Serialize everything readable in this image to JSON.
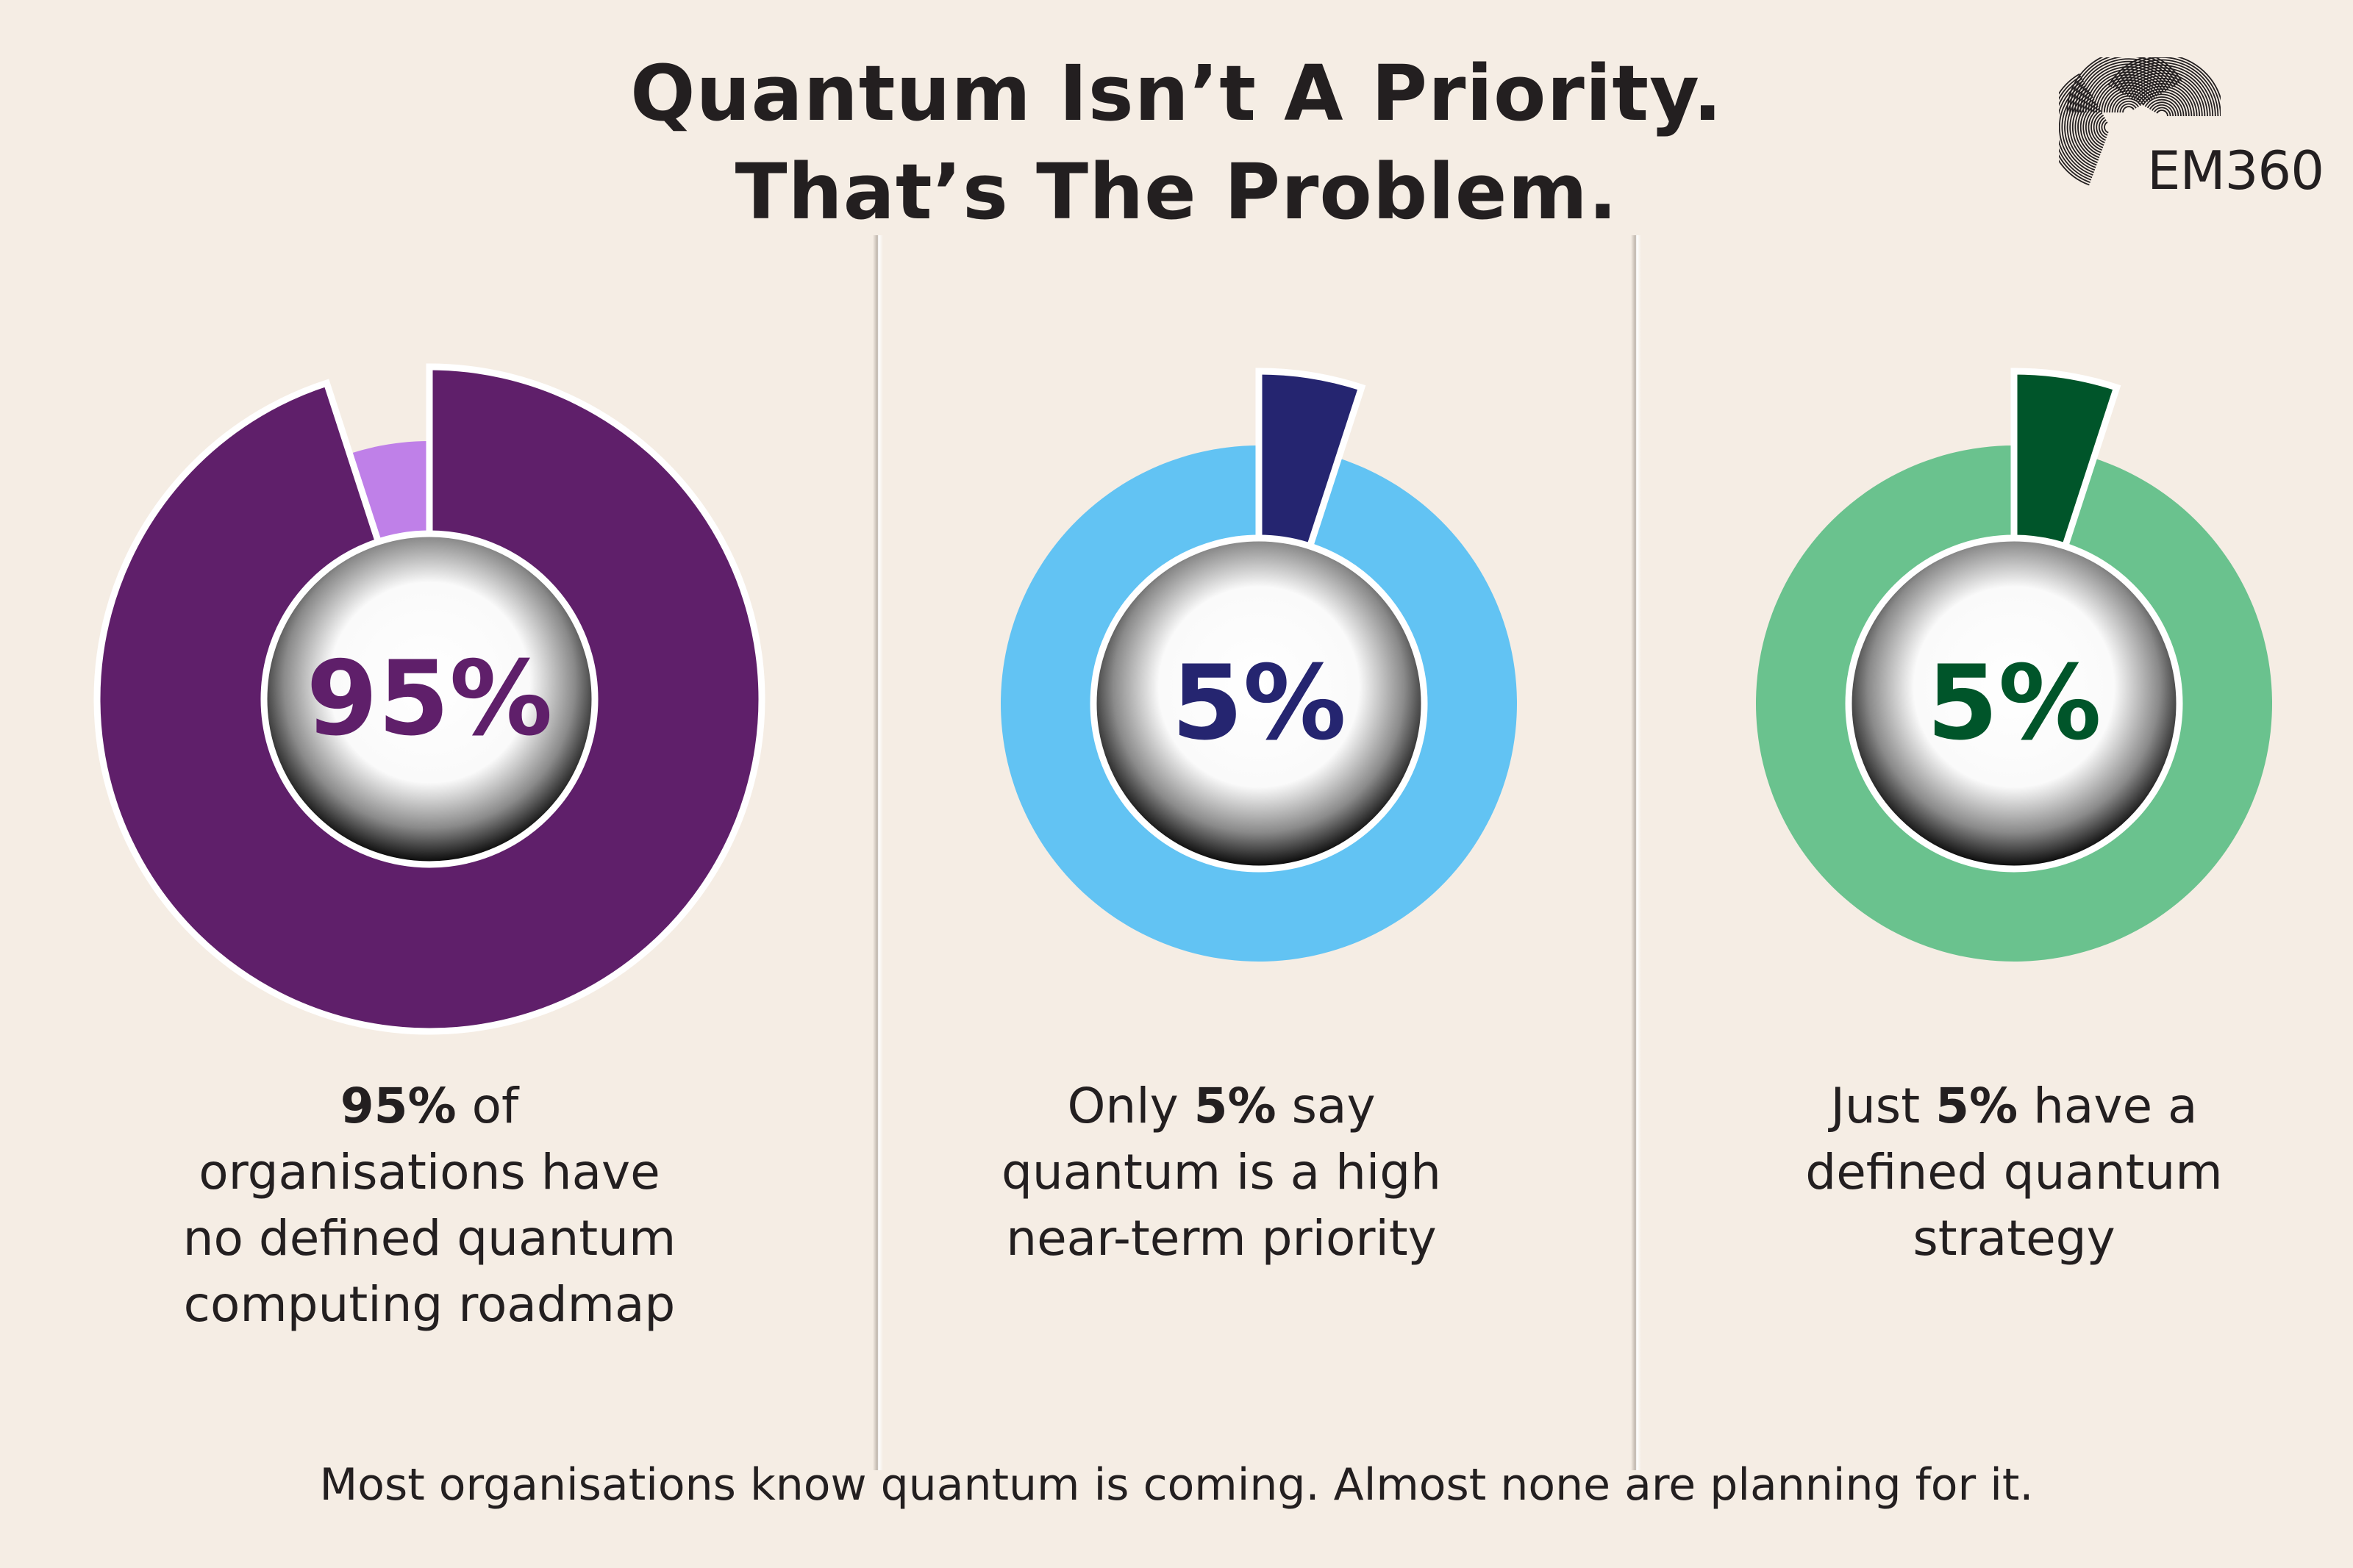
{
  "title": {
    "line1": "Quantum Isn’t A Priority.",
    "line2": "That’s The Problem."
  },
  "logo": {
    "text": "EM360"
  },
  "colors": {
    "background": "#f5ede4",
    "text": "#231f20"
  },
  "chart_data": [
    {
      "type": "pie",
      "style": "donut",
      "center_label": "95%",
      "segments": [
        {
          "value": 95,
          "color": "#5f1f6a",
          "highlighted": true
        },
        {
          "value": 5,
          "color": "#bf80e8",
          "highlighted": false
        }
      ],
      "label_color": "#5f1f6a",
      "caption": [
        {
          "bold": "95%",
          "post": " of"
        },
        {
          "pre": "organisations have"
        },
        {
          "pre": "no defined quantum"
        },
        {
          "pre": "computing roadmap"
        }
      ]
    },
    {
      "type": "pie",
      "style": "donut",
      "center_label": "5%",
      "segments": [
        {
          "value": 5,
          "color": "#252570",
          "highlighted": true
        },
        {
          "value": 95,
          "color": "#62c3f3",
          "highlighted": false
        }
      ],
      "label_color": "#252570",
      "caption": [
        {
          "pre": "Only ",
          "bold": "5%",
          "post": " say"
        },
        {
          "pre": "quantum is a high"
        },
        {
          "pre": "near-term priority"
        }
      ]
    },
    {
      "type": "pie",
      "style": "donut",
      "center_label": "5%",
      "segments": [
        {
          "value": 5,
          "color": "#00552a",
          "highlighted": true
        },
        {
          "value": 95,
          "color": "#6ac28e",
          "highlighted": false
        }
      ],
      "label_color": "#00552a",
      "caption": [
        {
          "pre": "Just ",
          "bold": "5%",
          "post": " have a"
        },
        {
          "pre": "defined quantum"
        },
        {
          "pre": "strategy"
        }
      ]
    }
  ],
  "footer": "Most organisations know quantum is coming. Almost none are planning for it."
}
